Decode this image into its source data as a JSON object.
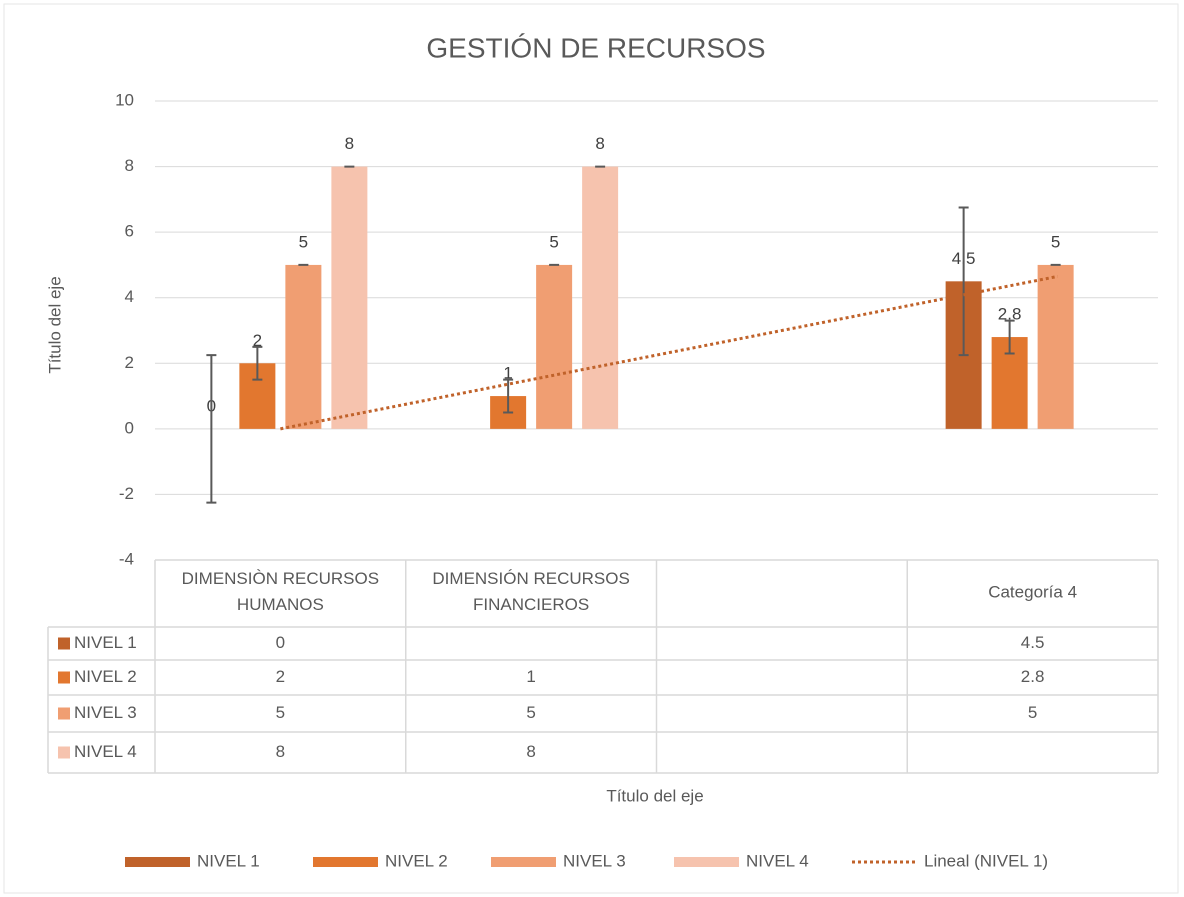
{
  "chart_data": {
    "type": "bar",
    "title": "GESTIÓN DE RECURSOS",
    "y_axis_title": "Título del eje",
    "x_axis_title": "Título del eje",
    "categories": [
      "DIMENSIÒN RECURSOS HUMANOS",
      "DIMENSIÓN RECURSOS FINANCIEROS",
      null,
      "Categoría 4"
    ],
    "series": [
      {
        "name": "NIVEL 1",
        "color": "#c0622a",
        "values": [
          0,
          null,
          null,
          4.5
        ],
        "errors": [
          2.25,
          null,
          null,
          2.25
        ]
      },
      {
        "name": "NIVEL 2",
        "color": "#e2772f",
        "values": [
          2,
          1,
          null,
          2.8
        ],
        "errors": [
          0.5,
          0.5,
          null,
          0.5
        ]
      },
      {
        "name": "NIVEL 3",
        "color": "#f09e72",
        "values": [
          5,
          5,
          null,
          5
        ],
        "errors": [
          0,
          0,
          null,
          0
        ]
      },
      {
        "name": "NIVEL 4",
        "color": "#f6c3ae",
        "values": [
          8,
          8,
          null,
          null
        ],
        "errors": [
          0,
          0,
          null,
          null
        ]
      }
    ],
    "trendline": {
      "name": "Lineal (NIVEL 1)",
      "series": 0,
      "color": "#c0622a"
    },
    "ylim": [
      -4,
      10
    ],
    "yticks": [
      -4,
      -2,
      0,
      2,
      4,
      6,
      8,
      10
    ],
    "grid": true,
    "data_table": true,
    "legend": "bottom"
  }
}
